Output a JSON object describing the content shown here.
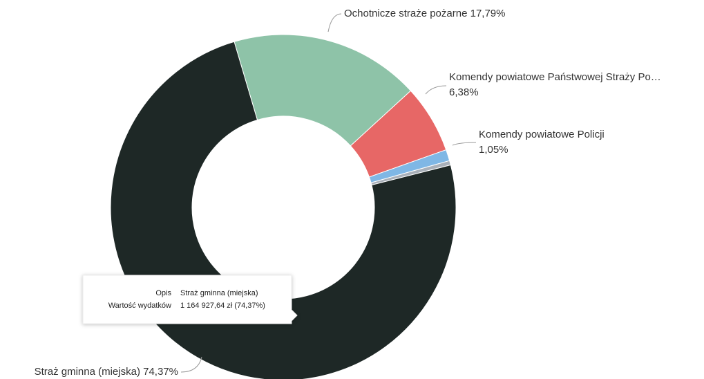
{
  "chart_data": {
    "type": "donut",
    "categories": [
      "Ochotnicze straże pożarne",
      "Komendy powiatowe Państwowej Straży Po…",
      "Komendy powiatowe Policji",
      null,
      "Straż gminna (miejska)"
    ],
    "values": [
      17.79,
      6.38,
      1.05,
      0.41,
      74.37
    ],
    "value_labels": [
      "17,79%",
      "6,38%",
      "1,05%",
      null,
      "74,37%"
    ],
    "colors": [
      "#8ec3a8",
      "#e76766",
      "#7fb7e5",
      "#a9b0b9",
      "#1e2826"
    ],
    "tooltip": {
      "rows": [
        [
          "Opis",
          "Straż gminna (miejska)"
        ],
        [
          "Wartość wydatków",
          "1 164 927,64 zł (74,37%)"
        ]
      ]
    }
  }
}
